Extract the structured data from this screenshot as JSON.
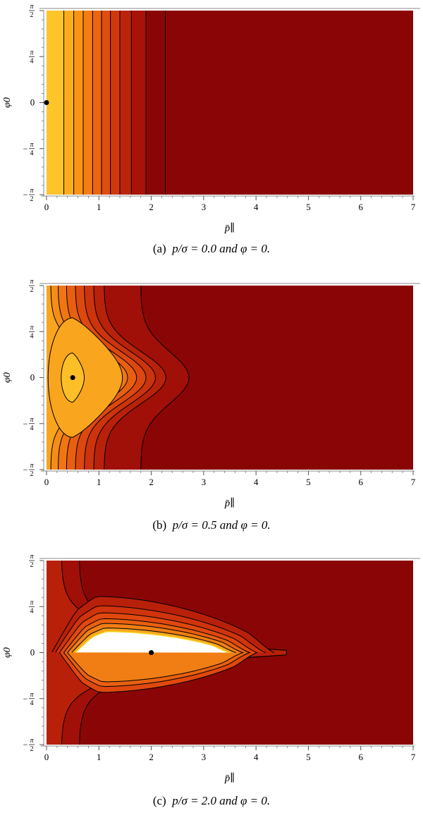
{
  "chart_data": [
    {
      "type": "contour",
      "caption": {
        "label": "(a)",
        "expr": "p/σ = 0.0 and φ = 0."
      },
      "xlabel": "p̄∥",
      "ylabel": "φ0",
      "xlim": [
        0,
        7
      ],
      "ylim": [
        -1.5708,
        1.5708
      ],
      "x_ticks": [
        "0",
        "1",
        "2",
        "3",
        "4",
        "5",
        "6",
        "7"
      ],
      "y_ticks": [
        "−π/2",
        "−π/4",
        "0",
        "π/4",
        "π/2"
      ],
      "peak": [
        0.0,
        0.0
      ],
      "colors": [
        "#fdc52a",
        "#fbad1f",
        "#f99516",
        "#f47d12",
        "#ec6510",
        "#e04d0e",
        "#d0380c",
        "#bc240a",
        "#a81208",
        "#8a0606"
      ],
      "levels_x": [
        0.33,
        0.52,
        0.7,
        0.88,
        1.05,
        1.22,
        1.4,
        1.62,
        1.9,
        2.27
      ]
    },
    {
      "type": "contour",
      "caption": {
        "label": "(b)",
        "expr": "p/σ = 0.5 and φ = 0."
      },
      "xlabel": "p̄∥",
      "ylabel": "φ0",
      "xlim": [
        0,
        7
      ],
      "ylim": [
        -1.5708,
        1.5708
      ],
      "x_ticks": [
        "0",
        "1",
        "2",
        "3",
        "4",
        "5",
        "6",
        "7"
      ],
      "y_ticks": [
        "−π/2",
        "−π/4",
        "0",
        "π/4",
        "π/2"
      ],
      "peak": [
        0.5,
        0.0
      ],
      "colors": [
        "#fcbf28",
        "#f9a51d",
        "#f58d16",
        "#f07612",
        "#e85f10",
        "#dc480e",
        "#cc340c",
        "#b8210a",
        "#a01008",
        "#8a0606"
      ],
      "levels": [
        {
          "tip": 0.22,
          "left": 0.08,
          "open": false
        },
        {
          "tip": 0.95,
          "left": 0.03,
          "open": false
        },
        {
          "tip": 1.2,
          "top": 0.08
        },
        {
          "tip": 1.38,
          "top": 0.22
        },
        {
          "tip": 1.55,
          "top": 0.38
        },
        {
          "tip": 1.72,
          "top": 0.55
        },
        {
          "tip": 1.9,
          "top": 0.72
        },
        {
          "tip": 2.08,
          "top": 0.9
        },
        {
          "tip": 2.28,
          "top": 1.1
        },
        {
          "tip": 2.72,
          "top": 1.8
        }
      ]
    },
    {
      "type": "contour",
      "caption": {
        "label": "(c)",
        "expr": "p/σ = 2.0 and φ = 0."
      },
      "xlabel": "p̄∥",
      "ylabel": "φ0",
      "xlim": [
        0,
        7
      ],
      "ylim": [
        -1.5708,
        1.5708
      ],
      "x_ticks": [
        "0",
        "1",
        "2",
        "3",
        "4",
        "5",
        "6",
        "7"
      ],
      "y_ticks": [
        "−π/2",
        "−π/4",
        "0",
        "π/4",
        "π/2"
      ],
      "peak": [
        2.0,
        0.0
      ],
      "colors": [
        "#ffffff",
        "#fde07a",
        "#f8a520",
        "#f07e14",
        "#e86010",
        "#e0480e",
        "#d0340c",
        "#b8200a",
        "#a01008",
        "#8a0606"
      ],
      "levels": [
        {
          "left": 0.55,
          "right": 3.5,
          "h": 0.36
        },
        {
          "left": 0.48,
          "right": 3.62,
          "h": 0.42
        },
        {
          "left": 0.4,
          "right": 3.75,
          "h": 0.5
        },
        {
          "left": 0.33,
          "right": 3.88,
          "h": 0.58
        },
        {
          "left": 0.25,
          "right": 4.02,
          "h": 0.68
        },
        {
          "left": 0.17,
          "right": 4.18,
          "h": 0.8
        },
        {
          "left": 0.1,
          "right": 4.35,
          "h": 0.96
        },
        {
          "left": 0.05,
          "right": 4.58,
          "h": 1.3,
          "open": true,
          "top": 0.28
        },
        {
          "left": 0.05,
          "right": 4.58,
          "h": 1.3,
          "open": true,
          "top": 0.62
        }
      ]
    }
  ]
}
